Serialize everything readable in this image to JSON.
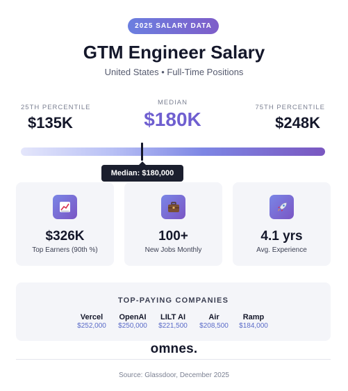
{
  "header": {
    "badge": "2025 SALARY DATA",
    "title": "GTM Engineer Salary",
    "subtitle": "United States • Full-Time Positions"
  },
  "percentiles": {
    "p25": {
      "label": "25TH PERCENTILE",
      "value": "$135K"
    },
    "median": {
      "label": "MEDIAN",
      "value": "$180K"
    },
    "p75": {
      "label": "75TH PERCENTILE",
      "value": "$248K"
    }
  },
  "range": {
    "tooltip": "Median: $180,000",
    "marker_fraction": 0.4,
    "colors": {
      "start": "#e4e6fb",
      "end": "#7a57c0"
    }
  },
  "stats": [
    {
      "icon": "chart-increasing-icon",
      "value": "$326K",
      "label": "Top Earners (90th %)"
    },
    {
      "icon": "briefcase-icon",
      "value": "100+",
      "label": "New Jobs Monthly"
    },
    {
      "icon": "rocket-icon",
      "value": "4.1 yrs",
      "label": "Avg. Experience"
    }
  ],
  "companies": {
    "title": "TOP-PAYING COMPANIES",
    "items": [
      {
        "name": "Vercel",
        "salary": "$252,000"
      },
      {
        "name": "OpenAI",
        "salary": "$250,000"
      },
      {
        "name": "LILT AI",
        "salary": "$221,500"
      },
      {
        "name": "Air",
        "salary": "$208,500"
      },
      {
        "name": "Ramp",
        "salary": "$184,000"
      }
    ]
  },
  "footer": {
    "logo": "omnes.",
    "source": "Source: Glassdoor, December 2025"
  },
  "colors": {
    "accent": "#6f5fd0",
    "gradient_start": "#6b7fe0",
    "gradient_end": "#7e5dc9",
    "dark": "#14172a",
    "card_bg": "#f4f5f9"
  }
}
